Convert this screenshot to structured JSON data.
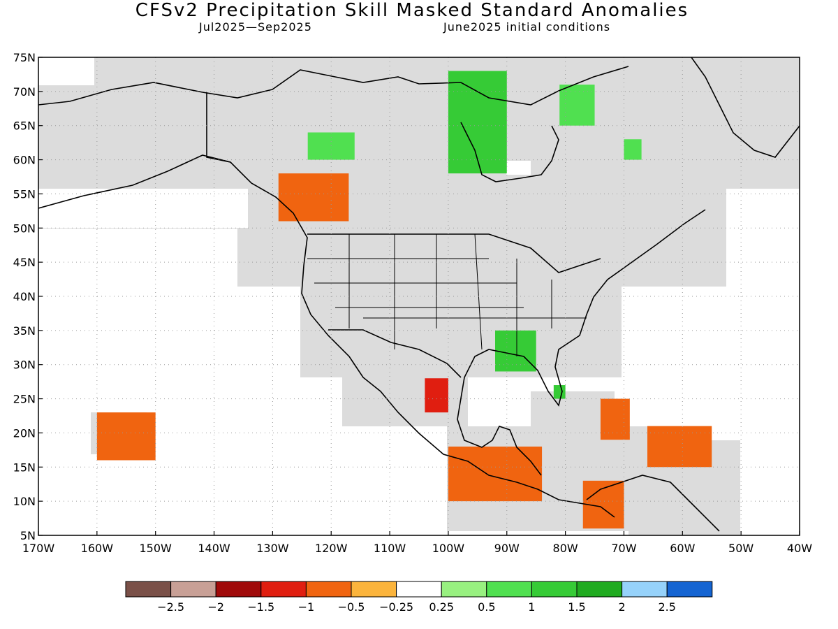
{
  "header": {
    "title": "CFSv2 Precipitation Skill Masked Standard Anomalies",
    "valid_period": "Jul2025—Sep2025",
    "initial_conditions": "June2025 initial conditions"
  },
  "axes": {
    "lat_labels": [
      "75N",
      "70N",
      "65N",
      "60N",
      "55N",
      "50N",
      "45N",
      "40N",
      "35N",
      "30N",
      "25N",
      "20N",
      "15N",
      "10N",
      "5N"
    ],
    "lon_labels": [
      "170W",
      "160W",
      "150W",
      "140W",
      "130W",
      "120W",
      "110W",
      "100W",
      "90W",
      "80W",
      "70W",
      "60W",
      "50W",
      "40W"
    ]
  },
  "legend": {
    "colors": [
      "#7a5048",
      "#c8a096",
      "#a00a0a",
      "#e01e10",
      "#f06410",
      "#fbb43c",
      "#ffffff",
      "#98f080",
      "#50e050",
      "#36cb36",
      "#20ab20",
      "#96d2fa",
      "#1464d2"
    ],
    "labels": [
      "−2.5",
      "−2",
      "−1.5",
      "−1",
      "−0.5",
      "−0.25",
      "0.25",
      "0.5",
      "1",
      "1.5",
      "2",
      "2.5"
    ]
  },
  "map": {
    "masked_color": "#dcdcdc",
    "chart_data": {
      "type": "heatmap",
      "variable": "precipitation standard anomaly",
      "lon_range": [
        -170,
        -40
      ],
      "lat_range": [
        5,
        75
      ],
      "anomaly_regions": [
        {
          "region": "Southeast US (Mississippi/Alabama)",
          "lon": [
            -92,
            -85
          ],
          "lat": [
            29,
            35
          ],
          "value": 1.0
        },
        {
          "region": "Northern Canada (Nunavut)",
          "lon": [
            -100,
            -90
          ],
          "lat": [
            58,
            73
          ],
          "value": 1.0
        },
        {
          "region": "Baffin Island",
          "lon": [
            -81,
            -75
          ],
          "lat": [
            65,
            71
          ],
          "value": 0.5
        },
        {
          "region": "Hudson Strait",
          "lon": [
            -70,
            -67
          ],
          "lat": [
            60,
            63
          ],
          "value": 0.5
        },
        {
          "region": "Mackenzie region",
          "lon": [
            -124,
            -116
          ],
          "lat": [
            60,
            64
          ],
          "value": 0.5
        },
        {
          "region": "Florida",
          "lon": [
            -82,
            -80
          ],
          "lat": [
            25,
            27
          ],
          "value": 1.0
        },
        {
          "region": "British Columbia",
          "lon": [
            -129,
            -117
          ],
          "lat": [
            51,
            58
          ],
          "value": -1.0
        },
        {
          "region": "Northern Mexico (Sierra Madre Oriental)",
          "lon": [
            -104,
            -100
          ],
          "lat": [
            23,
            28
          ],
          "value": -1.5
        },
        {
          "region": "Southern Mexico Pacific coast",
          "lon": [
            -100,
            -84
          ],
          "lat": [
            10,
            18
          ],
          "value": -1.0
        },
        {
          "region": "Hispaniola/Turks",
          "lon": [
            -74,
            -69
          ],
          "lat": [
            19,
            25
          ],
          "value": -1.0
        },
        {
          "region": "Eastern Caribbean",
          "lon": [
            -66,
            -55
          ],
          "lat": [
            15,
            21
          ],
          "value": -1.0
        },
        {
          "region": "Colombia/Venezuela coast",
          "lon": [
            -77,
            -70
          ],
          "lat": [
            6,
            13
          ],
          "value": -1.0
        },
        {
          "region": "Hawaii",
          "lon": [
            -160,
            -150
          ],
          "lat": [
            16,
            23
          ],
          "value": -1.0
        }
      ]
    }
  }
}
